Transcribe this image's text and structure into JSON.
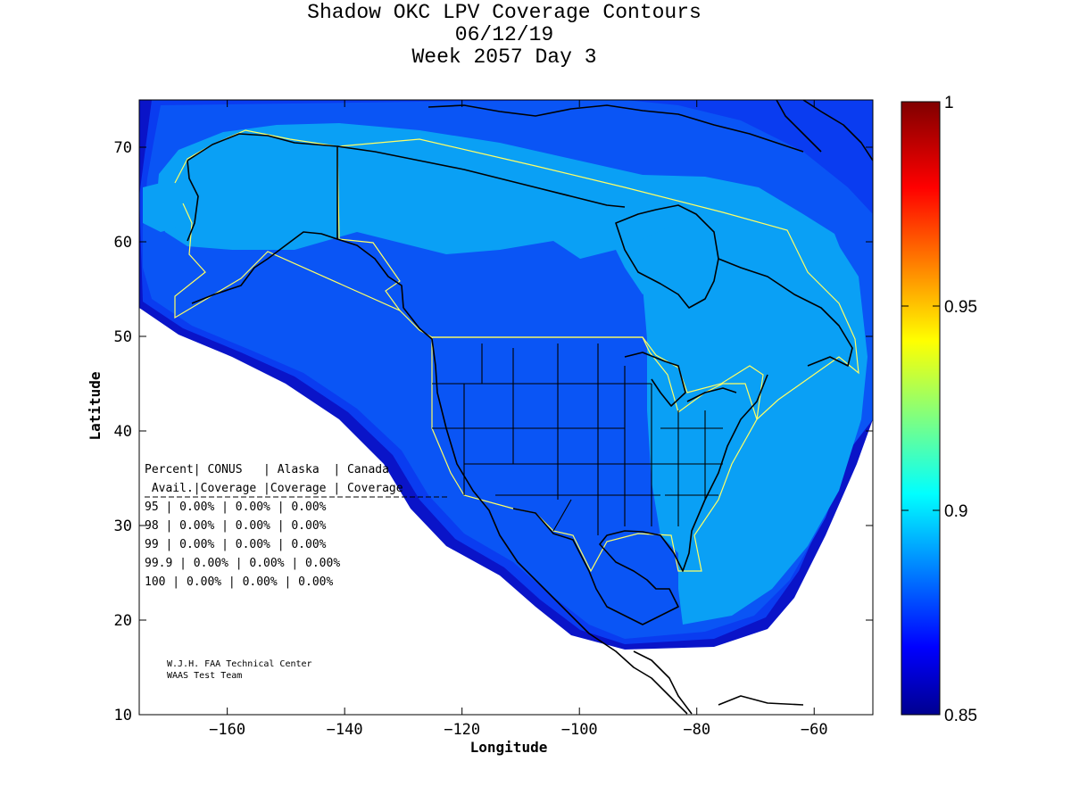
{
  "title": {
    "line1": "Shadow OKC LPV Coverage Contours",
    "line2": "06/12/19",
    "line3": "Week 2057 Day 3"
  },
  "axes": {
    "xlabel": "Longitude",
    "ylabel": "Latitude",
    "xlim": [
      -175,
      -50
    ],
    "ylim": [
      10,
      75
    ],
    "xticks": [
      -160,
      -140,
      -120,
      -100,
      -80,
      -60
    ],
    "yticks": [
      10,
      20,
      30,
      40,
      50,
      60,
      70
    ]
  },
  "colorbar": {
    "min": 0.85,
    "max": 1,
    "ticks": [
      "0.85",
      "0.9",
      "0.95",
      "1"
    ],
    "tick_values": [
      0.85,
      0.9,
      0.95,
      1.0
    ]
  },
  "coverage_table": {
    "header1": "Percent| CONUS   | Alaska  | Canada",
    "header2": " Avail.|Coverage |Coverage | Coverage",
    "rows": [
      {
        "pct": "95",
        "conus": "0.00%",
        "alaska": "0.00%",
        "canada": "0.00%"
      },
      {
        "pct": "98",
        "conus": "0.00%",
        "alaska": "0.00%",
        "canada": "0.00%"
      },
      {
        "pct": "99",
        "conus": "0.00%",
        "alaska": "0.00%",
        "canada": "0.00%"
      },
      {
        "pct": "99.9",
        "conus": "0.00%",
        "alaska": "0.00%",
        "canada": "0.00%"
      },
      {
        "pct": "100",
        "conus": "0.00%",
        "alaska": "0.00%",
        "canada": "0.00%"
      }
    ]
  },
  "credits": {
    "line1": "W.J.H. FAA Technical Center",
    "line2": "WAAS Test Team"
  },
  "colors": {
    "outer_band": "#0a14c8",
    "mid_band": "#0a3cf0",
    "main_fill": "#0a55f5",
    "light_region": "#0aa0f5",
    "boundary": "#ffff64",
    "coast": "#000000"
  }
}
